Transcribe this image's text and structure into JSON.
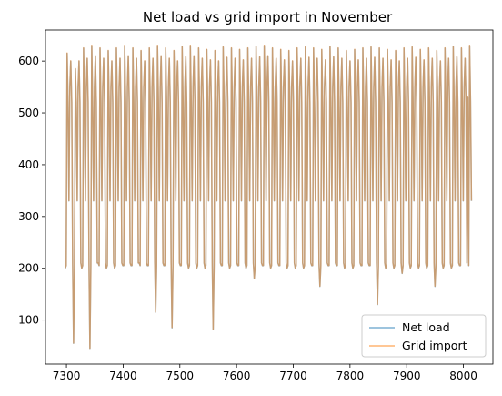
{
  "chart_data": {
    "type": "line",
    "title": "Net load vs grid import in November",
    "xlabel": "",
    "ylabel": "",
    "xlim": [
      7263,
      8052
    ],
    "ylim": [
      15,
      660
    ],
    "x_ticks": [
      7300,
      7400,
      7500,
      7600,
      7700,
      7800,
      7900,
      8000
    ],
    "y_ticks": [
      100,
      200,
      300,
      400,
      500,
      600
    ],
    "x_tick_labels": [
      "7300",
      "7400",
      "7500",
      "7600",
      "7700",
      "7800",
      "7900",
      "8000"
    ],
    "y_tick_labels": [
      "100",
      "200",
      "300",
      "400",
      "500",
      "600"
    ],
    "grid": false,
    "legend_position": "lower-right",
    "x_start": 7298,
    "x_end": 8015,
    "series": [
      {
        "name": "Net load",
        "color": "#1f77b4",
        "opacity": 0.5
      },
      {
        "name": "Grid import",
        "color": "#ff7f0e",
        "opacity": 0.5
      }
    ],
    "daily_profile": [
      200,
      205,
      610,
      520,
      330,
      550,
      600,
      520,
      210
    ],
    "daily_lows": [
      200,
      55,
      200,
      45,
      210,
      200,
      200,
      205,
      205,
      210,
      205,
      115,
      205,
      85,
      205,
      200,
      200,
      200,
      82,
      205,
      200,
      205,
      200,
      180,
      205,
      200,
      205,
      200,
      200,
      200,
      205,
      165,
      205,
      205,
      200,
      200,
      205,
      205,
      130,
      200,
      200,
      190,
      200,
      200,
      200,
      165,
      200,
      200,
      205,
      530
    ],
    "daily_peaks": [
      615,
      585,
      625,
      630,
      625,
      620,
      625,
      630,
      625,
      620,
      625,
      630,
      625,
      620,
      628,
      630,
      625,
      622,
      620,
      627,
      625,
      622,
      625,
      628,
      630,
      625,
      622,
      620,
      625,
      627,
      625,
      622,
      628,
      625,
      620,
      622,
      625,
      627,
      625,
      622,
      620,
      625,
      627,
      622,
      625,
      620,
      625,
      628,
      625,
      630
    ]
  }
}
